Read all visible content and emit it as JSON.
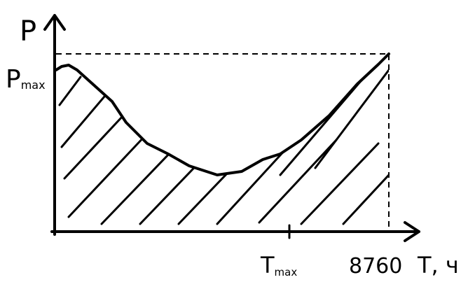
{
  "y_axis": {
    "label": "P",
    "marker": {
      "main": "P",
      "sub": "max"
    }
  },
  "x_axis": {
    "label": "T, ч",
    "markers": [
      {
        "main": "T",
        "sub": "max"
      },
      {
        "text": "8760"
      }
    ]
  }
}
